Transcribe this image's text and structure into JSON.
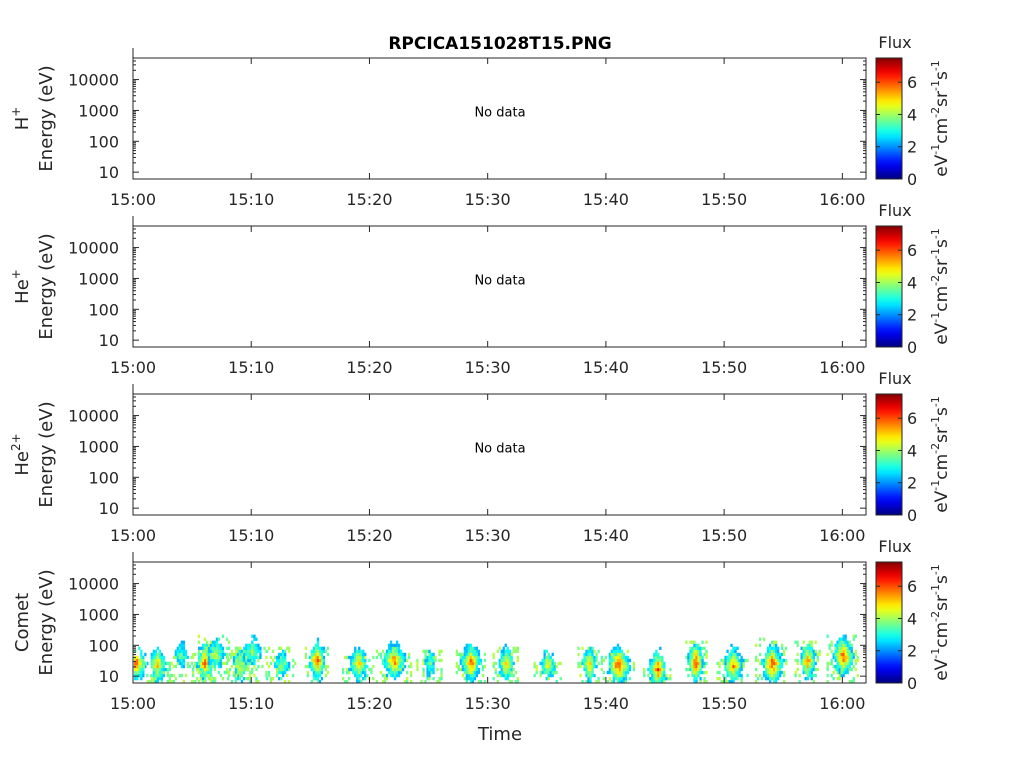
{
  "chart_data": {
    "type": "heatmap",
    "title": "RPCICA151028T15.PNG",
    "xlabel": "Time",
    "x_tick_labels": [
      "15:00",
      "15:10",
      "15:20",
      "15:30",
      "15:40",
      "15:50",
      "16:00"
    ],
    "x_ticks_minutes": [
      0,
      10,
      20,
      30,
      40,
      50,
      60
    ],
    "xlim_minutes": [
      0,
      62
    ],
    "y_scale": "log",
    "ylim": [
      6,
      50000
    ],
    "y_tick_labels": [
      "10",
      "100",
      "1000",
      "10000"
    ],
    "y_tick_values": [
      10,
      100,
      1000,
      10000
    ],
    "colorbar": {
      "label_top": "Flux",
      "side_label_parts": [
        "eV",
        "-1",
        "cm",
        "-2",
        "sr",
        "-1",
        "s",
        "-1"
      ],
      "range": [
        0,
        7.5
      ],
      "tick_labels": [
        "0",
        "2",
        "4",
        "6"
      ],
      "tick_values": [
        0,
        2,
        4,
        6
      ],
      "colormap": "jet"
    },
    "panels": [
      {
        "species": "H",
        "charge": "+",
        "ylabel": "Energy (eV)",
        "annotation": "No data",
        "bursts": []
      },
      {
        "species": "He",
        "charge": "+",
        "ylabel": "Energy (eV)",
        "annotation": "No data",
        "bursts": []
      },
      {
        "species": "He",
        "charge": "2+",
        "ylabel": "Energy (eV)",
        "annotation": "No data",
        "bursts": []
      },
      {
        "species": "Comet",
        "charge": "",
        "ylabel": "Energy (eV)",
        "annotation": "",
        "bursts": [
          {
            "t": 0.2,
            "e_peak": 25,
            "e_max": 60,
            "peak_flux": 6.8
          },
          {
            "t": 2.0,
            "e_peak": 22,
            "e_max": 80,
            "peak_flux": 6.0
          },
          {
            "t": 4.0,
            "e_peak": 40,
            "e_max": 150,
            "peak_flux": 4.5
          },
          {
            "t": 6.0,
            "e_peak": 25,
            "e_max": 300,
            "peak_flux": 6.8
          },
          {
            "t": 6.9,
            "e_peak": 45,
            "e_max": 700,
            "peak_flux": 5.2
          },
          {
            "t": 9.0,
            "e_peak": 20,
            "e_max": 250,
            "peak_flux": 5.6
          },
          {
            "t": 10.0,
            "e_peak": 60,
            "e_max": 300,
            "peak_flux": 5.0
          },
          {
            "t": 12.5,
            "e_peak": 22,
            "e_max": 300,
            "peak_flux": 4.8
          },
          {
            "t": 15.5,
            "e_peak": 28,
            "e_max": 300,
            "peak_flux": 7.0
          },
          {
            "t": 19.0,
            "e_peak": 22,
            "e_max": 150,
            "peak_flux": 6.0
          },
          {
            "t": 22.0,
            "e_peak": 28,
            "e_max": 200,
            "peak_flux": 6.5
          },
          {
            "t": 25.0,
            "e_peak": 22,
            "e_max": 200,
            "peak_flux": 4.5
          },
          {
            "t": 28.5,
            "e_peak": 25,
            "e_max": 200,
            "peak_flux": 6.8
          },
          {
            "t": 31.5,
            "e_peak": 22,
            "e_max": 300,
            "peak_flux": 6.0
          },
          {
            "t": 35.0,
            "e_peak": 22,
            "e_max": 80,
            "peak_flux": 5.5
          },
          {
            "t": 38.5,
            "e_peak": 22,
            "e_max": 300,
            "peak_flux": 6.2
          },
          {
            "t": 41.0,
            "e_peak": 20,
            "e_max": 200,
            "peak_flux": 7.0
          },
          {
            "t": 44.3,
            "e_peak": 15,
            "e_max": 60,
            "peak_flux": 6.8
          },
          {
            "t": 47.5,
            "e_peak": 25,
            "e_max": 400,
            "peak_flux": 7.2
          },
          {
            "t": 50.7,
            "e_peak": 20,
            "e_max": 120,
            "peak_flux": 6.3
          },
          {
            "t": 54.0,
            "e_peak": 22,
            "e_max": 500,
            "peak_flux": 7.0
          },
          {
            "t": 57.0,
            "e_peak": 28,
            "e_max": 400,
            "peak_flux": 6.5
          },
          {
            "t": 60.0,
            "e_peak": 40,
            "e_max": 600,
            "peak_flux": 6.8
          }
        ]
      }
    ]
  }
}
